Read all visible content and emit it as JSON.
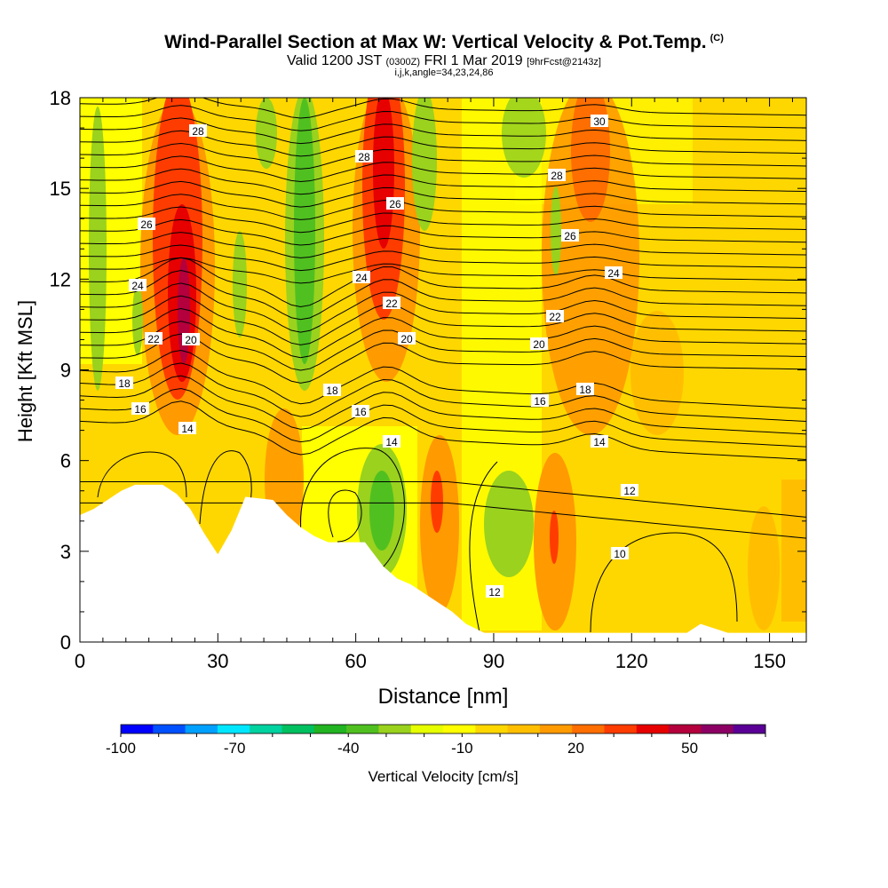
{
  "title": {
    "main": "Wind-Parallel Section at Max W: Vertical Velocity & Pot.Temp.",
    "copyright": "(C)",
    "valid_prefix": "Valid 1200 JST",
    "valid_z": "(0300Z)",
    "valid_date": "FRI 1 Mar 2019",
    "forecast": "[9hrFcst@2143z]",
    "params": "i,j,k,angle=34,23,24,86"
  },
  "chart_data": {
    "type": "heatmap",
    "xlabel": "Distance [nm]",
    "ylabel": "Height [Kft MSL]",
    "xlim": [
      0,
      158
    ],
    "ylim": [
      0,
      18
    ],
    "x_ticks": [
      0,
      30,
      60,
      90,
      120,
      150
    ],
    "y_ticks": [
      0,
      3,
      6,
      9,
      12,
      15,
      18
    ],
    "colorbar": {
      "label": "Vertical Velocity [cm/s]",
      "tick_labels": [
        "-100",
        "-70",
        "-40",
        "-10",
        "20",
        "50"
      ],
      "tick_values": [
        -100,
        -70,
        -40,
        -10,
        20,
        50
      ],
      "range": [
        -100,
        70
      ],
      "step": 10,
      "colors": [
        "#0000ff",
        "#0050ff",
        "#00a0ff",
        "#00e6ff",
        "#00d2a0",
        "#00c060",
        "#22b422",
        "#50c020",
        "#9ad21e",
        "#e6ff00",
        "#ffff00",
        "#ffd700",
        "#ffbf00",
        "#ff9a00",
        "#ff6e00",
        "#ff3c00",
        "#e60000",
        "#b4003c",
        "#8c0064",
        "#5a0096"
      ]
    },
    "velocity_features": [
      {
        "x": 22,
        "y_range": [
          8,
          18
        ],
        "value": 50,
        "sign": "updraft"
      },
      {
        "x": 67,
        "y_range": [
          8,
          18
        ],
        "value": 40,
        "sign": "updraft"
      },
      {
        "x": 112,
        "y_range": [
          7,
          18
        ],
        "value": 20,
        "sign": "updraft"
      },
      {
        "x": 48,
        "y_range": [
          7,
          18
        ],
        "value": -40,
        "sign": "downdraft"
      },
      {
        "x": 4,
        "y_range": [
          8,
          18
        ],
        "value": -30,
        "sign": "downdraft"
      },
      {
        "x": 73,
        "y_range": [
          13,
          18
        ],
        "value": -30,
        "sign": "downdraft"
      },
      {
        "x": 94,
        "y_range": [
          15,
          18
        ],
        "value": -20,
        "sign": "downdraft"
      },
      {
        "x": 103,
        "y_range": [
          12,
          15
        ],
        "value": -20,
        "sign": "downdraft"
      },
      {
        "x": 64,
        "y_range": [
          3,
          6
        ],
        "value": -40,
        "sign": "downdraft"
      },
      {
        "x": 90,
        "y_range": [
          2,
          5
        ],
        "value": -20,
        "sign": "downdraft"
      }
    ],
    "potential_temperature_contours": {
      "labels": [
        "28",
        "28",
        "28",
        "30",
        "26",
        "26",
        "26",
        "24",
        "24",
        "24",
        "22",
        "22",
        "22",
        "20",
        "20",
        "20",
        "18",
        "18",
        "18",
        "16",
        "16",
        "16",
        "14",
        "14",
        "14",
        "12",
        "10",
        "12"
      ],
      "levels": [
        10,
        12,
        14,
        16,
        18,
        20,
        22,
        24,
        26,
        28,
        30
      ]
    },
    "terrain_height_kft": [
      {
        "x": 0,
        "h": 4.2
      },
      {
        "x": 3,
        "h": 4.4
      },
      {
        "x": 6,
        "h": 4.7
      },
      {
        "x": 9,
        "h": 5.0
      },
      {
        "x": 12,
        "h": 5.2
      },
      {
        "x": 18,
        "h": 5.2
      },
      {
        "x": 21,
        "h": 4.9
      },
      {
        "x": 24,
        "h": 4.4
      },
      {
        "x": 27,
        "h": 3.6
      },
      {
        "x": 30,
        "h": 2.9
      },
      {
        "x": 33,
        "h": 3.7
      },
      {
        "x": 36,
        "h": 4.8
      },
      {
        "x": 42,
        "h": 4.7
      },
      {
        "x": 45,
        "h": 4.2
      },
      {
        "x": 48,
        "h": 3.8
      },
      {
        "x": 51,
        "h": 3.5
      },
      {
        "x": 54,
        "h": 3.3
      },
      {
        "x": 62,
        "h": 3.3
      },
      {
        "x": 64,
        "h": 2.9
      },
      {
        "x": 66,
        "h": 2.5
      },
      {
        "x": 69,
        "h": 2.1
      },
      {
        "x": 72,
        "h": 1.9
      },
      {
        "x": 75,
        "h": 1.6
      },
      {
        "x": 78,
        "h": 1.3
      },
      {
        "x": 81,
        "h": 1.0
      },
      {
        "x": 84,
        "h": 0.6
      },
      {
        "x": 88,
        "h": 0.3
      },
      {
        "x": 132,
        "h": 0.3
      },
      {
        "x": 135,
        "h": 0.6
      },
      {
        "x": 141,
        "h": 0.3
      },
      {
        "x": 158,
        "h": 0.3
      }
    ]
  }
}
